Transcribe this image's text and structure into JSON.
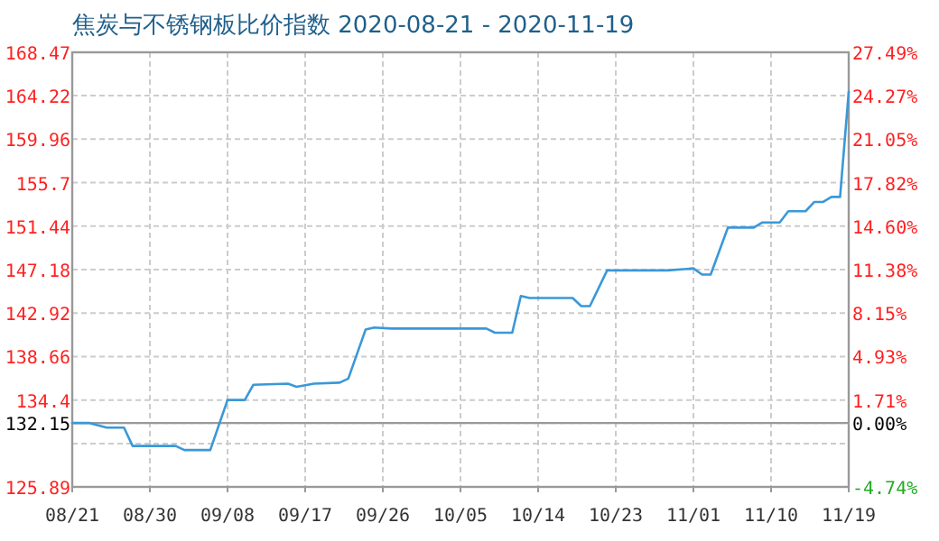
{
  "chart_data": {
    "type": "line",
    "title": "焦炭与不锈钢板比价指数 2020-08-21 - 2020-11-19",
    "x": [
      "2020-08-21",
      "2020-08-23",
      "2020-08-25",
      "2020-08-27",
      "2020-08-28",
      "2020-09-02",
      "2020-09-03",
      "2020-09-06",
      "2020-09-08",
      "2020-09-10",
      "2020-09-11",
      "2020-09-15",
      "2020-09-16",
      "2020-09-18",
      "2020-09-21",
      "2020-09-22",
      "2020-09-24",
      "2020-09-25",
      "2020-09-27",
      "2020-10-08",
      "2020-10-09",
      "2020-10-11",
      "2020-10-12",
      "2020-10-13",
      "2020-10-18",
      "2020-10-19",
      "2020-10-20",
      "2020-10-22",
      "2020-10-29",
      "2020-11-01",
      "2020-11-02",
      "2020-11-03",
      "2020-11-05",
      "2020-11-08",
      "2020-11-09",
      "2020-11-11",
      "2020-11-12",
      "2020-11-14",
      "2020-11-15",
      "2020-11-16",
      "2020-11-17",
      "2020-11-18",
      "2020-11-19"
    ],
    "series": [
      {
        "color": "#3a98d8",
        "values": [
          132.15,
          132.15,
          131.7,
          131.7,
          129.9,
          129.9,
          129.5,
          129.5,
          134.4,
          134.4,
          135.9,
          136.0,
          135.7,
          136.0,
          136.1,
          136.5,
          141.3,
          141.5,
          141.4,
          141.4,
          141.0,
          141.0,
          144.6,
          144.4,
          144.4,
          143.6,
          143.6,
          147.1,
          147.1,
          147.3,
          146.7,
          146.7,
          151.3,
          151.3,
          151.8,
          151.8,
          152.9,
          152.9,
          153.8,
          153.8,
          154.3,
          154.3,
          164.6
        ]
      }
    ],
    "xlim": [
      "2020-08-21",
      "2020-11-19"
    ],
    "xticks": [
      {
        "value": "2020-08-21",
        "label": "08/21"
      },
      {
        "value": "2020-08-30",
        "label": "08/30"
      },
      {
        "value": "2020-09-08",
        "label": "09/08"
      },
      {
        "value": "2020-09-17",
        "label": "09/17"
      },
      {
        "value": "2020-09-26",
        "label": "09/26"
      },
      {
        "value": "2020-10-05",
        "label": "10/05"
      },
      {
        "value": "2020-10-14",
        "label": "10/14"
      },
      {
        "value": "2020-10-23",
        "label": "10/23"
      },
      {
        "value": "2020-11-01",
        "label": "11/01"
      },
      {
        "value": "2020-11-10",
        "label": "11/10"
      },
      {
        "value": "2020-11-19",
        "label": "11/19"
      }
    ],
    "ylim": [
      125.89,
      168.47
    ],
    "yticks": [
      125.89,
      {
        "value": 130.14,
        "label": null
      },
      132.15,
      134.4,
      138.66,
      142.92,
      147.18,
      151.44,
      155.7,
      159.96,
      164.22,
      168.47
    ],
    "y2lim": [
      -4.74,
      27.49
    ],
    "y2ticks": [
      {
        "value": -4.74,
        "label": "-4.74%"
      },
      {
        "value": 0,
        "label": "0.00%"
      },
      {
        "value": 1.71,
        "label": "1.71%"
      },
      {
        "value": 4.93,
        "label": "4.93%"
      },
      {
        "value": 8.15,
        "label": "8.15%"
      },
      {
        "value": 11.38,
        "label": "11.38%"
      },
      {
        "value": 14.6,
        "label": "14.60%"
      },
      {
        "value": 17.82,
        "label": "17.82%"
      },
      {
        "value": 21.05,
        "label": "21.05%"
      },
      {
        "value": 24.27,
        "label": "24.27%"
      },
      {
        "value": 27.49,
        "label": "27.49%"
      }
    ],
    "ref_lines": [
      {
        "axis": "y",
        "value": 132.15,
        "color": "#999999"
      }
    ],
    "grid": true,
    "line_style": "solid",
    "marker": "none"
  }
}
